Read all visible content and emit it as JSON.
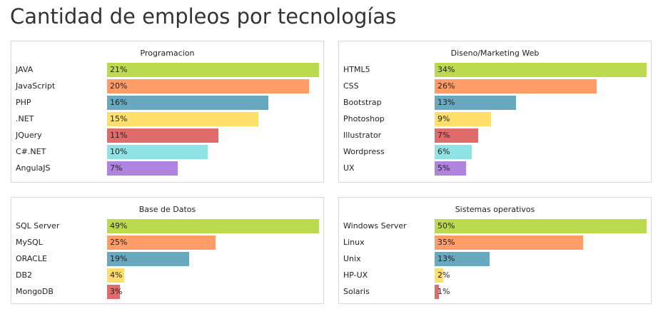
{
  "page": {
    "title": "Cantidad de empleos por tecnologías"
  },
  "colors": [
    "#bcda4d",
    "#ff9c68",
    "#69a9c0",
    "#ffdf6b",
    "#e06b6b",
    "#8fe3e4",
    "#b083df"
  ],
  "chart_data": [
    {
      "type": "bar",
      "orientation": "horizontal",
      "title": "Programacion",
      "categories": [
        "JAVA",
        "JavaScript",
        "PHP",
        ".NET",
        "JQuery",
        "C#.NET",
        "AngulaJS"
      ],
      "values": [
        21,
        20,
        16,
        15,
        11,
        10,
        7
      ],
      "value_labels": [
        "21%",
        "20%",
        "16%",
        "15%",
        "11%",
        "10%",
        "7%"
      ],
      "xlim": [
        0,
        21
      ]
    },
    {
      "type": "bar",
      "orientation": "horizontal",
      "title": "Diseno/Marketing Web",
      "categories": [
        "HTML5",
        "CSS",
        "Bootstrap",
        "Photoshop",
        "Illustrator",
        "Wordpress",
        "UX"
      ],
      "values": [
        34,
        26,
        13,
        9,
        7,
        6,
        5
      ],
      "value_labels": [
        "34%",
        "26%",
        "13%",
        "9%",
        "7%",
        "6%",
        "5%"
      ],
      "xlim": [
        0,
        34
      ]
    },
    {
      "type": "bar",
      "orientation": "horizontal",
      "title": "Base de Datos",
      "categories": [
        "SQL Server",
        "MySQL",
        "ORACLE",
        "DB2",
        "MongoDB"
      ],
      "values": [
        49,
        25,
        19,
        4,
        3
      ],
      "value_labels": [
        "49%",
        "25%",
        "19%",
        "4%",
        "3%"
      ],
      "xlim": [
        0,
        49
      ]
    },
    {
      "type": "bar",
      "orientation": "horizontal",
      "title": "Sistemas operativos",
      "categories": [
        "Windows Server",
        "Linux",
        "Unix",
        "HP-UX",
        "Solaris"
      ],
      "values": [
        50,
        35,
        13,
        2,
        1
      ],
      "value_labels": [
        "50%",
        "35%",
        "13%",
        "2%",
        "1%"
      ],
      "xlim": [
        0,
        50
      ]
    }
  ]
}
